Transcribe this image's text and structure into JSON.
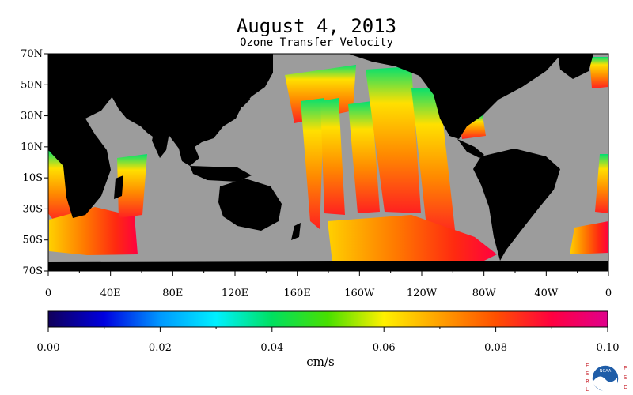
{
  "header": {
    "title": "August 4, 2013",
    "subtitle": "Ozone Transfer Velocity"
  },
  "map": {
    "lat_labels": [
      "70N",
      "50N",
      "30N",
      "10N",
      "10S",
      "30S",
      "50S",
      "70S"
    ],
    "lon_labels": [
      "0",
      "40E",
      "80E",
      "120E",
      "160E",
      "160W",
      "120W",
      "80W",
      "40W",
      "0"
    ],
    "colors": {
      "land": "#000000",
      "no_data": "#9c9c9c",
      "frame": "#000000"
    }
  },
  "colorbar": {
    "min": 0.0,
    "max": 0.1,
    "tick_labels": [
      "0.00",
      "0.02",
      "0.04",
      "0.06",
      "0.08",
      "0.10"
    ],
    "unit": "cm/s",
    "stops": [
      "#10005a",
      "#0000e0",
      "#0098ff",
      "#00f0ff",
      "#00e060",
      "#48e000",
      "#fff000",
      "#ffa000",
      "#ff5000",
      "#ff0040",
      "#e0008c"
    ]
  },
  "logo": {
    "name": "noaa-logo",
    "left_letters": "ESRL",
    "right_letters": "PSD",
    "emblem_text": "NOAA"
  }
}
